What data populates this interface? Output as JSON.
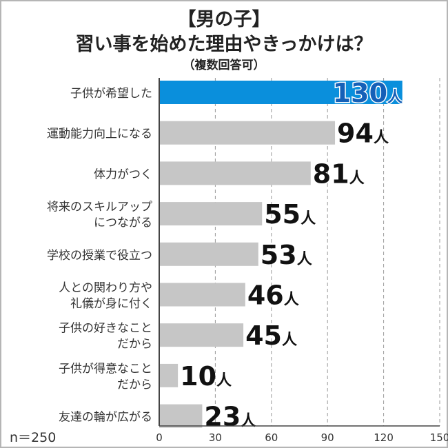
{
  "title": {
    "line1": "【男の子】",
    "line2": "習い事を始めた理由やきっかけは？",
    "line3": "（複数回答可）"
  },
  "sample_label": "n＝250",
  "colors": {
    "highlight": "#0a8fdc",
    "bar": "#c6c6c6",
    "value_text": "#111111",
    "highlight_text": "#1560b8",
    "grid": "#9a9a9a",
    "axis": "#444444"
  },
  "chart_data": {
    "type": "bar",
    "orientation": "horizontal",
    "title": "【男の子】習い事を始めた理由やきっかけは？（複数回答可）",
    "categories": [
      [
        "子供が希望した"
      ],
      [
        "運動能力向上になる"
      ],
      [
        "体力がつく"
      ],
      [
        "将来のスキルアップ",
        "につながる"
      ],
      [
        "学校の授業で役立つ"
      ],
      [
        "人との関わり方や",
        "礼儀が身に付く"
      ],
      [
        "子供の好きなこと",
        "だから"
      ],
      [
        "子供が得意なこと",
        "だから"
      ],
      [
        "友達の輪が広がる"
      ]
    ],
    "values": [
      130,
      94,
      81,
      55,
      53,
      46,
      45,
      10,
      23
    ],
    "value_unit": "人",
    "highlight_index": 0,
    "xlim": [
      0,
      150
    ],
    "xticks": [
      0,
      30,
      60,
      90,
      120,
      150
    ],
    "grid": "vertical-dashed",
    "xlabel": "",
    "ylabel": ""
  }
}
